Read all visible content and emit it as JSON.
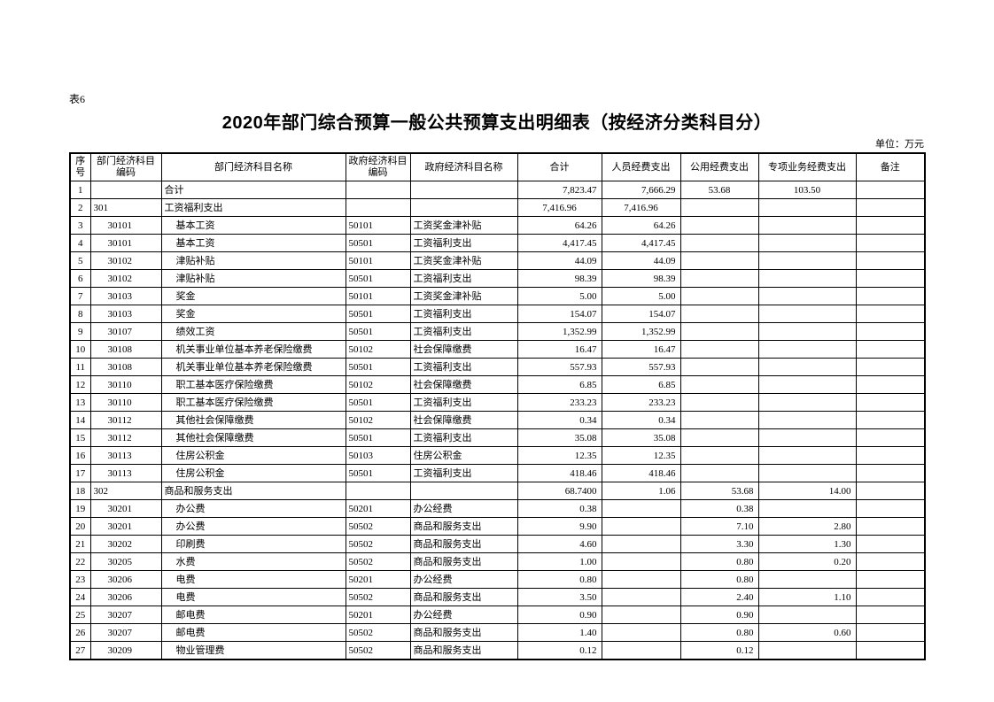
{
  "page": {
    "tag": "表6",
    "title": "2020年部门综合预算一般公共预算支出明细表（按经济分类科目分）",
    "unit_label": "单位：万元"
  },
  "table": {
    "columns": [
      {
        "key": "no",
        "lines": [
          "序",
          "号"
        ]
      },
      {
        "key": "dept_code",
        "lines": [
          "部门经济科目",
          "编码"
        ]
      },
      {
        "key": "dept_name",
        "lines": [
          "部门经济科目名称"
        ]
      },
      {
        "key": "gov_code",
        "lines": [
          "政府经济科目",
          "编码"
        ]
      },
      {
        "key": "gov_name",
        "lines": [
          "政府经济科目名称"
        ]
      },
      {
        "key": "total",
        "lines": [
          "合计"
        ]
      },
      {
        "key": "personnel",
        "lines": [
          "人员经费支出"
        ]
      },
      {
        "key": "public_exp",
        "lines": [
          "公用经费支出"
        ]
      },
      {
        "key": "special_exp",
        "lines": [
          "专项业务经费支出"
        ]
      },
      {
        "key": "remark",
        "lines": [
          "备注"
        ]
      }
    ],
    "rows": [
      {
        "no": "1",
        "dept_code": "",
        "dept_name": "合计",
        "gov_code": "",
        "gov_name": "",
        "total": "7,823.47",
        "personnel": "7,666.29",
        "public_exp": "53.68",
        "special_exp": "103.50",
        "remark": "",
        "level": 0,
        "center": [
          "public_exp",
          "special_exp"
        ]
      },
      {
        "no": "2",
        "dept_code": "301",
        "dept_name": "工资福利支出",
        "gov_code": "",
        "gov_name": "",
        "total": "7,416.96",
        "personnel": "7,416.96",
        "public_exp": "",
        "special_exp": "",
        "remark": "",
        "level": 0,
        "center": [
          "total",
          "personnel"
        ]
      },
      {
        "no": "3",
        "dept_code": "30101",
        "dept_name": "基本工资",
        "gov_code": "50101",
        "gov_name": "工资奖金津补贴",
        "total": "64.26",
        "personnel": "64.26",
        "public_exp": "",
        "special_exp": "",
        "remark": "",
        "level": 1
      },
      {
        "no": "4",
        "dept_code": "30101",
        "dept_name": "基本工资",
        "gov_code": "50501",
        "gov_name": "工资福利支出",
        "total": "4,417.45",
        "personnel": "4,417.45",
        "public_exp": "",
        "special_exp": "",
        "remark": "",
        "level": 1
      },
      {
        "no": "5",
        "dept_code": "30102",
        "dept_name": "津贴补贴",
        "gov_code": "50101",
        "gov_name": "工资奖金津补贴",
        "total": "44.09",
        "personnel": "44.09",
        "public_exp": "",
        "special_exp": "",
        "remark": "",
        "level": 1
      },
      {
        "no": "6",
        "dept_code": "30102",
        "dept_name": "津贴补贴",
        "gov_code": "50501",
        "gov_name": "工资福利支出",
        "total": "98.39",
        "personnel": "98.39",
        "public_exp": "",
        "special_exp": "",
        "remark": "",
        "level": 1
      },
      {
        "no": "7",
        "dept_code": "30103",
        "dept_name": "奖金",
        "gov_code": "50101",
        "gov_name": "工资奖金津补贴",
        "total": "5.00",
        "personnel": "5.00",
        "public_exp": "",
        "special_exp": "",
        "remark": "",
        "level": 1
      },
      {
        "no": "8",
        "dept_code": "30103",
        "dept_name": "奖金",
        "gov_code": "50501",
        "gov_name": "工资福利支出",
        "total": "154.07",
        "personnel": "154.07",
        "public_exp": "",
        "special_exp": "",
        "remark": "",
        "level": 1
      },
      {
        "no": "9",
        "dept_code": "30107",
        "dept_name": "绩效工资",
        "gov_code": "50501",
        "gov_name": "工资福利支出",
        "total": "1,352.99",
        "personnel": "1,352.99",
        "public_exp": "",
        "special_exp": "",
        "remark": "",
        "level": 1
      },
      {
        "no": "10",
        "dept_code": "30108",
        "dept_name": "机关事业单位基本养老保险缴费",
        "gov_code": "50102",
        "gov_name": "社会保障缴费",
        "total": "16.47",
        "personnel": "16.47",
        "public_exp": "",
        "special_exp": "",
        "remark": "",
        "level": 1
      },
      {
        "no": "11",
        "dept_code": "30108",
        "dept_name": "机关事业单位基本养老保险缴费",
        "gov_code": "50501",
        "gov_name": "工资福利支出",
        "total": "557.93",
        "personnel": "557.93",
        "public_exp": "",
        "special_exp": "",
        "remark": "",
        "level": 1
      },
      {
        "no": "12",
        "dept_code": "30110",
        "dept_name": "职工基本医疗保险缴费",
        "gov_code": "50102",
        "gov_name": "社会保障缴费",
        "total": "6.85",
        "personnel": "6.85",
        "public_exp": "",
        "special_exp": "",
        "remark": "",
        "level": 1
      },
      {
        "no": "13",
        "dept_code": "30110",
        "dept_name": "职工基本医疗保险缴费",
        "gov_code": "50501",
        "gov_name": "工资福利支出",
        "total": "233.23",
        "personnel": "233.23",
        "public_exp": "",
        "special_exp": "",
        "remark": "",
        "level": 1
      },
      {
        "no": "14",
        "dept_code": "30112",
        "dept_name": "其他社会保障缴费",
        "gov_code": "50102",
        "gov_name": "社会保障缴费",
        "total": "0.34",
        "personnel": "0.34",
        "public_exp": "",
        "special_exp": "",
        "remark": "",
        "level": 1
      },
      {
        "no": "15",
        "dept_code": "30112",
        "dept_name": "其他社会保障缴费",
        "gov_code": "50501",
        "gov_name": "工资福利支出",
        "total": "35.08",
        "personnel": "35.08",
        "public_exp": "",
        "special_exp": "",
        "remark": "",
        "level": 1
      },
      {
        "no": "16",
        "dept_code": "30113",
        "dept_name": "住房公积金",
        "gov_code": "50103",
        "gov_name": "住房公积金",
        "total": "12.35",
        "personnel": "12.35",
        "public_exp": "",
        "special_exp": "",
        "remark": "",
        "level": 1
      },
      {
        "no": "17",
        "dept_code": "30113",
        "dept_name": "住房公积金",
        "gov_code": "50501",
        "gov_name": "工资福利支出",
        "total": "418.46",
        "personnel": "418.46",
        "public_exp": "",
        "special_exp": "",
        "remark": "",
        "level": 1
      },
      {
        "no": "18",
        "dept_code": "302",
        "dept_name": "商品和服务支出",
        "gov_code": "",
        "gov_name": "",
        "total": "68.7400",
        "personnel": "1.06",
        "public_exp": "53.68",
        "special_exp": "14.00",
        "remark": "",
        "level": 0
      },
      {
        "no": "19",
        "dept_code": "30201",
        "dept_name": "办公费",
        "gov_code": "50201",
        "gov_name": "办公经费",
        "total": "0.38",
        "personnel": "",
        "public_exp": "0.38",
        "special_exp": "",
        "remark": "",
        "level": 1
      },
      {
        "no": "20",
        "dept_code": "30201",
        "dept_name": "办公费",
        "gov_code": "50502",
        "gov_name": "商品和服务支出",
        "total": "9.90",
        "personnel": "",
        "public_exp": "7.10",
        "special_exp": "2.80",
        "remark": "",
        "level": 1
      },
      {
        "no": "21",
        "dept_code": "30202",
        "dept_name": "印刷费",
        "gov_code": "50502",
        "gov_name": "商品和服务支出",
        "total": "4.60",
        "personnel": "",
        "public_exp": "3.30",
        "special_exp": "1.30",
        "remark": "",
        "level": 1
      },
      {
        "no": "22",
        "dept_code": "30205",
        "dept_name": "水费",
        "gov_code": "50502",
        "gov_name": "商品和服务支出",
        "total": "1.00",
        "personnel": "",
        "public_exp": "0.80",
        "special_exp": "0.20",
        "remark": "",
        "level": 1
      },
      {
        "no": "23",
        "dept_code": "30206",
        "dept_name": "电费",
        "gov_code": "50201",
        "gov_name": "办公经费",
        "total": "0.80",
        "personnel": "",
        "public_exp": "0.80",
        "special_exp": "",
        "remark": "",
        "level": 1
      },
      {
        "no": "24",
        "dept_code": "30206",
        "dept_name": "电费",
        "gov_code": "50502",
        "gov_name": "商品和服务支出",
        "total": "3.50",
        "personnel": "",
        "public_exp": "2.40",
        "special_exp": "1.10",
        "remark": "",
        "level": 1
      },
      {
        "no": "25",
        "dept_code": "30207",
        "dept_name": "邮电费",
        "gov_code": "50201",
        "gov_name": "办公经费",
        "total": "0.90",
        "personnel": "",
        "public_exp": "0.90",
        "special_exp": "",
        "remark": "",
        "level": 1
      },
      {
        "no": "26",
        "dept_code": "30207",
        "dept_name": "邮电费",
        "gov_code": "50502",
        "gov_name": "商品和服务支出",
        "total": "1.40",
        "personnel": "",
        "public_exp": "0.80",
        "special_exp": "0.60",
        "remark": "",
        "level": 1
      },
      {
        "no": "27",
        "dept_code": "30209",
        "dept_name": "物业管理费",
        "gov_code": "50502",
        "gov_name": "商品和服务支出",
        "total": "0.12",
        "personnel": "",
        "public_exp": "0.12",
        "special_exp": "",
        "remark": "",
        "level": 1
      }
    ]
  }
}
